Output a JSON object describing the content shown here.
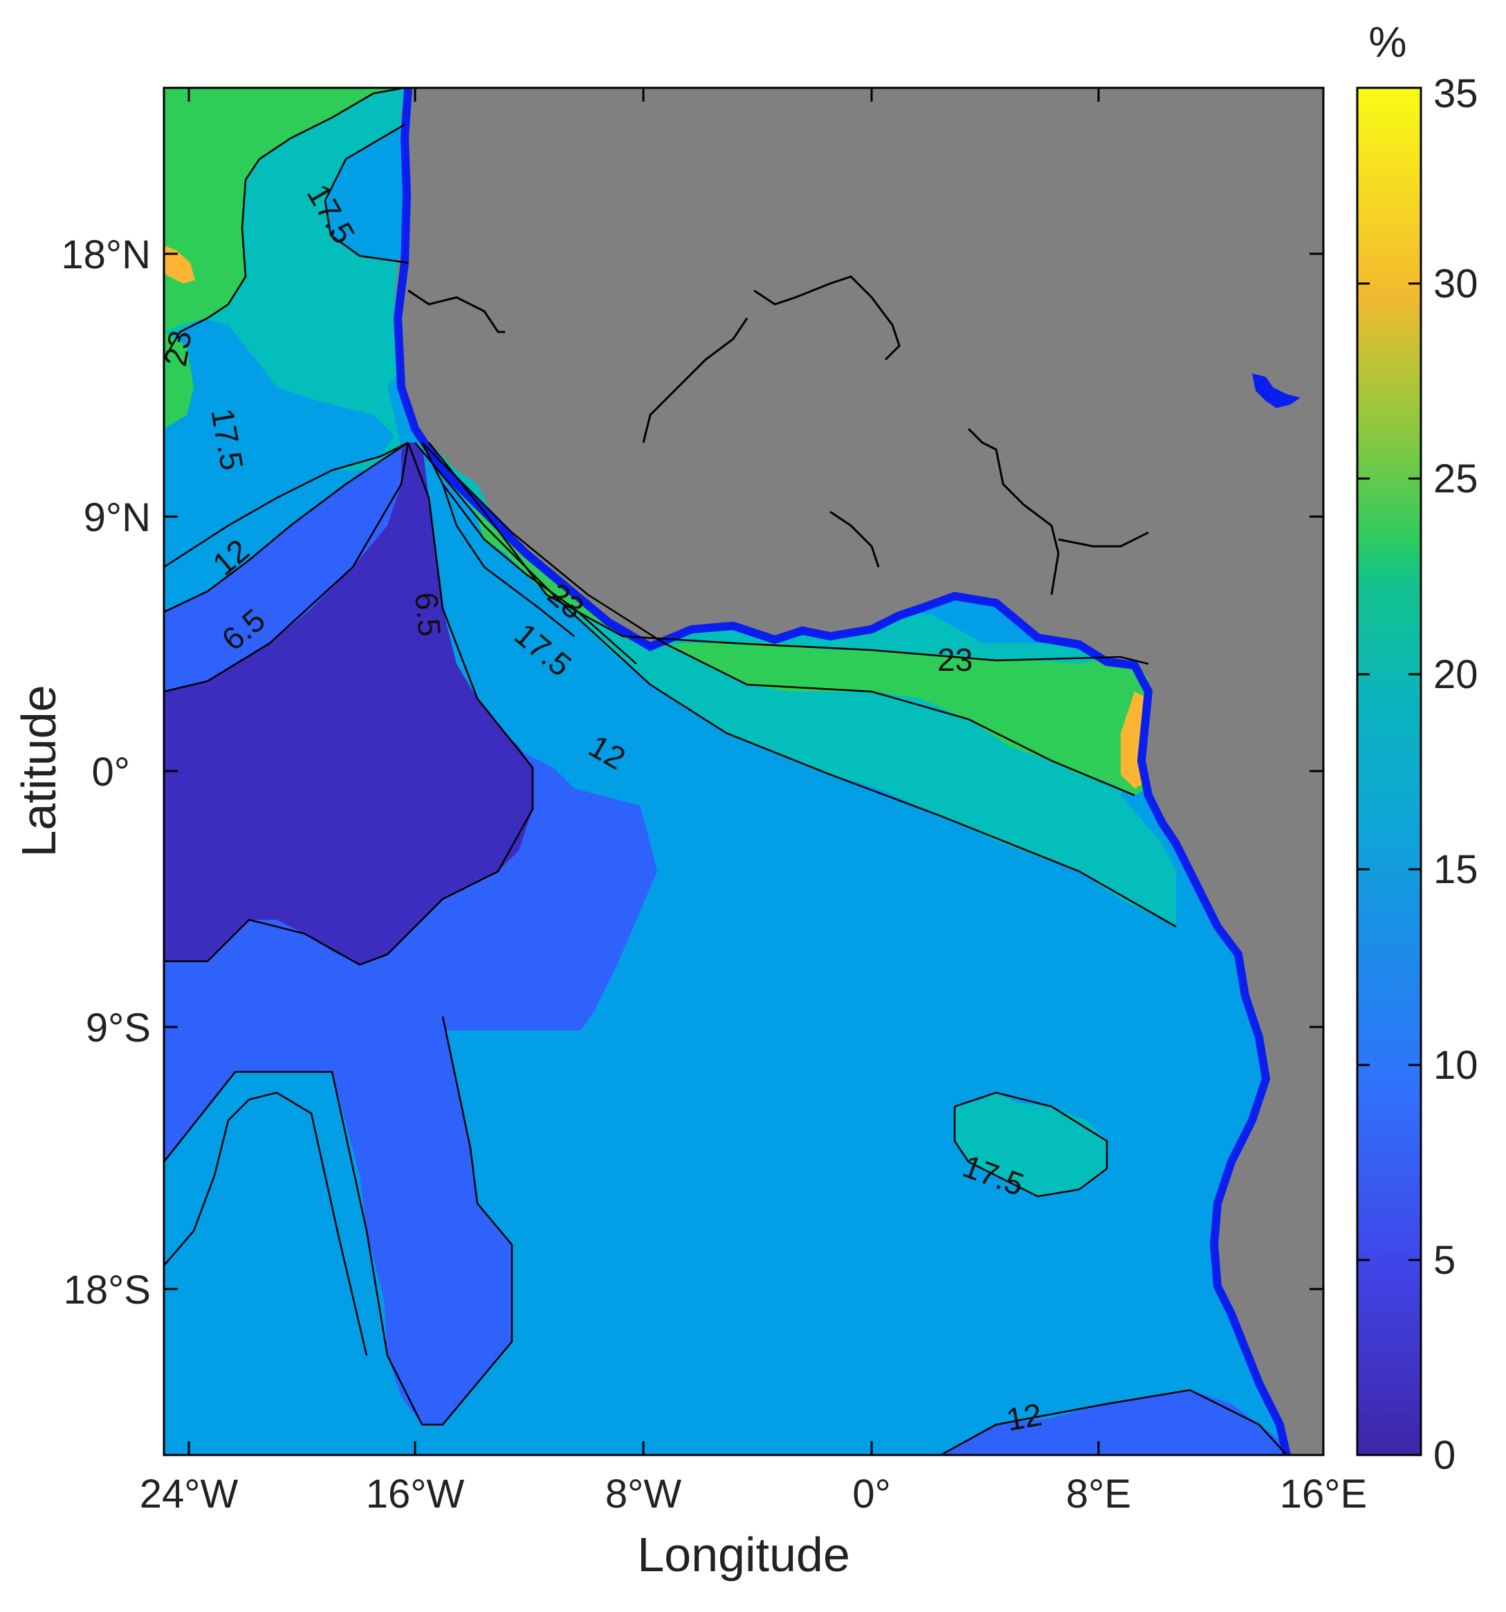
{
  "map": {
    "xlabel": "Longitude",
    "ylabel": "Latitude",
    "x_ticks": [
      "24°W",
      "16°W",
      "8°W",
      "0°",
      "8°E",
      "16°E"
    ],
    "y_ticks": [
      "18°N",
      "9°N",
      "0°",
      "9°S",
      "18°S"
    ],
    "contour_labels": [
      "17.5",
      "23",
      "17.5",
      "12",
      "6.5",
      "6.5",
      "23",
      "17.5",
      "12",
      "23",
      "17.5",
      "12"
    ],
    "colors": {
      "land": "#808080",
      "ocean_lt_5": "#3d2dbf",
      "ocean_5_10": "#2f62fb",
      "ocean_10_15": "#029fe6",
      "ocean_15_20": "#03bebb",
      "ocean_20_25": "#2ecd58",
      "ocean_gt_25": "#fbb532",
      "coastal_band": "#0a1ef0"
    }
  },
  "colorbar": {
    "unit": "%",
    "ticks": [
      "0",
      "5",
      "10",
      "15",
      "20",
      "25",
      "30",
      "35"
    ],
    "range": [
      0,
      35
    ]
  }
}
